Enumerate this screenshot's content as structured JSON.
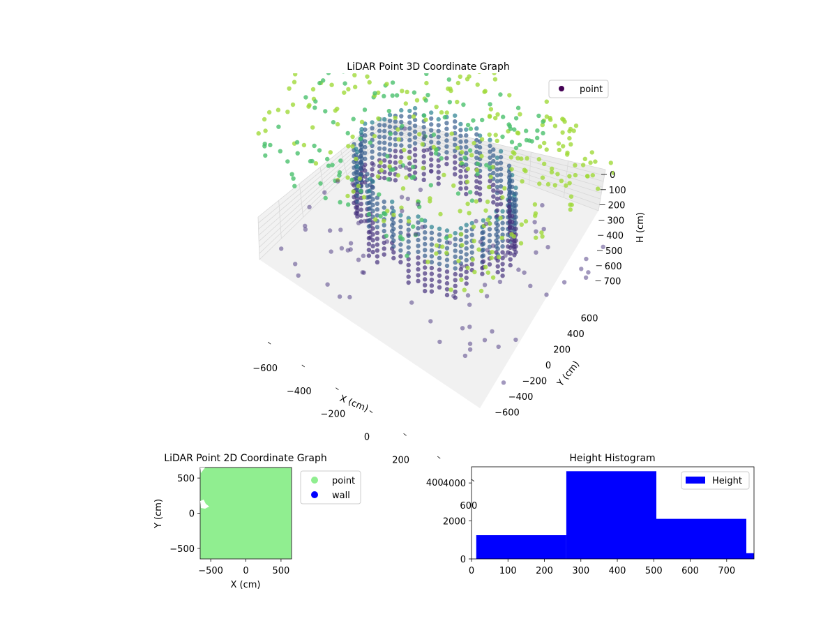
{
  "chart_data": [
    {
      "type": "scatter",
      "title": "LiDAR Point 3D Coordinate Graph",
      "xlabel": "X (cm)",
      "ylabel": "Y (cm)",
      "zlabel": "H (cm)",
      "xlim": [
        -650,
        650
      ],
      "ylim": [
        -650,
        650
      ],
      "zlim": [
        0,
        750
      ],
      "x_ticks": [
        "-600",
        "-400",
        "-200",
        "0",
        "200",
        "400",
        "600"
      ],
      "y_ticks": [
        "-600",
        "-400",
        "-200",
        "0",
        "200",
        "400",
        "600"
      ],
      "z_ticks": [
        "0",
        "100",
        "200",
        "300",
        "400",
        "500",
        "600",
        "700"
      ],
      "grid": true,
      "legend": {
        "placement": "top-right",
        "entries": [
          "point"
        ]
      },
      "series": [
        {
          "name": "point",
          "color_map": "viridis",
          "values_note_free": true
        }
      ]
    },
    {
      "type": "scatter",
      "title": "LiDAR Point 2D Coordinate Graph",
      "xlabel": "X (cm)",
      "ylabel": "Y (cm)",
      "xlim": [
        -650,
        650
      ],
      "ylim": [
        -650,
        650
      ],
      "x_ticks": [
        "-500",
        "0",
        "500"
      ],
      "y_ticks": [
        "-500",
        "0",
        "500"
      ],
      "legend": {
        "placement": "outside-right",
        "entries": [
          "point",
          "wall"
        ]
      },
      "series": [
        {
          "name": "point",
          "color": "#90ee90"
        },
        {
          "name": "wall",
          "color": "#0000ff"
        }
      ]
    },
    {
      "type": "bar",
      "title": "Height Histogram",
      "xlabel": "",
      "ylabel": "",
      "xlim": [
        0,
        775
      ],
      "ylim": [
        0,
        4850
      ],
      "x_ticks": [
        "0",
        "100",
        "200",
        "300",
        "400",
        "500",
        "600",
        "700"
      ],
      "y_ticks": [
        "0",
        "2000",
        "4000"
      ],
      "legend": {
        "placement": "top-right",
        "entries": [
          "Height"
        ]
      },
      "color": "#0000ff",
      "bins": [
        {
          "start": 13,
          "end": 260,
          "count": 1250
        },
        {
          "start": 260,
          "end": 507,
          "count": 4620
        },
        {
          "start": 507,
          "end": 754,
          "count": 2110
        },
        {
          "start": 754,
          "end": 775,
          "count": 300
        }
      ]
    }
  ]
}
